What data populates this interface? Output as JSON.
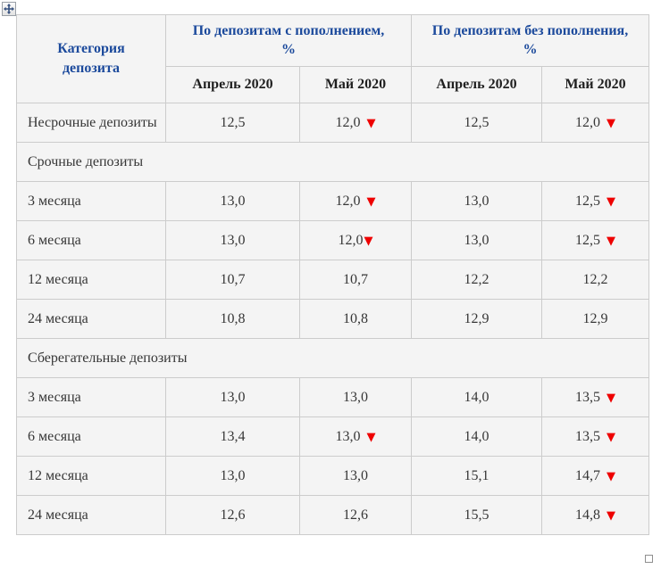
{
  "chart_data": {
    "type": "table",
    "header": {
      "category": "Категория\nдепозита",
      "group_with": "По депозитам с пополнением,\n%",
      "group_without": "По депозитам без пополнения,\n%",
      "months": [
        "Апрель 2020",
        "Май 2020",
        "Апрель 2020",
        "Май 2020"
      ]
    },
    "rows": [
      {
        "kind": "data",
        "category": "Несрочные депозиты",
        "cells": [
          {
            "v": "12,5"
          },
          {
            "v": "12,0",
            "change": "down"
          },
          {
            "v": "12,5"
          },
          {
            "v": "12,0",
            "change": "down"
          }
        ]
      },
      {
        "kind": "section",
        "category": "Срочные депозиты"
      },
      {
        "kind": "data",
        "category": "3 месяца",
        "cells": [
          {
            "v": "13,0"
          },
          {
            "v": "12,0",
            "change": "down"
          },
          {
            "v": "13,0"
          },
          {
            "v": "12,5",
            "change": "down"
          }
        ]
      },
      {
        "kind": "data",
        "category": "6 месяца",
        "cells": [
          {
            "v": "13,0"
          },
          {
            "v": "12,0",
            "change": "down",
            "tight": true
          },
          {
            "v": "13,0"
          },
          {
            "v": "12,5",
            "change": "down"
          }
        ]
      },
      {
        "kind": "data",
        "category": "12 месяца",
        "cells": [
          {
            "v": "10,7"
          },
          {
            "v": "10,7"
          },
          {
            "v": "12,2"
          },
          {
            "v": "12,2"
          }
        ]
      },
      {
        "kind": "data",
        "category": "24 месяца",
        "cells": [
          {
            "v": "10,8"
          },
          {
            "v": "10,8"
          },
          {
            "v": "12,9"
          },
          {
            "v": "12,9"
          }
        ]
      },
      {
        "kind": "section",
        "category": "Сберегательные депозиты"
      },
      {
        "kind": "data",
        "category": "3 месяца",
        "cells": [
          {
            "v": "13,0"
          },
          {
            "v": "13,0"
          },
          {
            "v": "14,0"
          },
          {
            "v": "13,5",
            "change": "down"
          }
        ]
      },
      {
        "kind": "data",
        "category": "6 месяца",
        "cells": [
          {
            "v": "13,4"
          },
          {
            "v": "13,0",
            "change": "down"
          },
          {
            "v": "14,0"
          },
          {
            "v": "13,5",
            "change": "down"
          }
        ]
      },
      {
        "kind": "data",
        "category": "12 месяца",
        "cells": [
          {
            "v": "13,0"
          },
          {
            "v": "13,0"
          },
          {
            "v": "15,1"
          },
          {
            "v": "14,7",
            "change": "down"
          }
        ]
      },
      {
        "kind": "data",
        "category": "24 месяца",
        "cells": [
          {
            "v": "12,6"
          },
          {
            "v": "12,6"
          },
          {
            "v": "15,5"
          },
          {
            "v": "14,8",
            "change": "down"
          }
        ]
      }
    ]
  },
  "icons": {
    "down_arrow": "▼",
    "move_handle": "four-way-arrow-icon",
    "resize_handle": "resize-square-icon"
  },
  "colors": {
    "header_blue": "#1c4a9c",
    "month_header_text": "#1f1f1f",
    "body_text": "#363636",
    "arrow_red": "#ee0000",
    "cell_bg": "#f4f4f4",
    "border": "#cccccc"
  }
}
